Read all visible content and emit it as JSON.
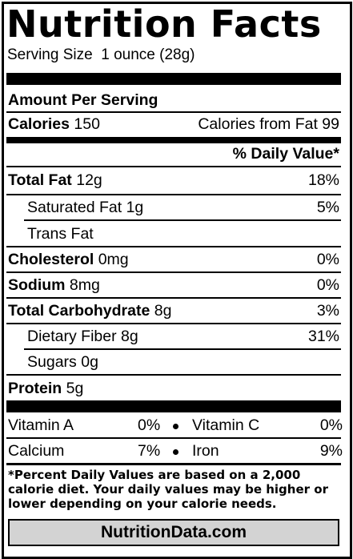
{
  "title": "Nutrition Facts",
  "serving_size": "Serving Size  1 ounce (28g)",
  "amount_per_serving": "Amount Per Serving",
  "calories": {
    "label": "Calories",
    "value": "150",
    "from_fat": "Calories from Fat 99"
  },
  "daily_value_header": "% Daily Value*",
  "nutrients": [
    {
      "name": "Total Fat",
      "amount": "12g",
      "dv": "18%"
    },
    {
      "name": "Saturated Fat",
      "amount": "1g",
      "dv": "5%"
    },
    {
      "name": "Trans Fat",
      "amount": "",
      "dv": ""
    },
    {
      "name": "Cholesterol",
      "amount": "0mg",
      "dv": "0%"
    },
    {
      "name": "Sodium",
      "amount": "8mg",
      "dv": "0%"
    },
    {
      "name": "Total Carbohydrate",
      "amount": "8g",
      "dv": "3%"
    },
    {
      "name": "Dietary Fiber",
      "amount": "8g",
      "dv": "31%"
    },
    {
      "name": "Sugars",
      "amount": "0g",
      "dv": ""
    },
    {
      "name": "Protein",
      "amount": "5g",
      "dv": ""
    }
  ],
  "vitamins": [
    {
      "name": "Vitamin A",
      "value": "0%"
    },
    {
      "name": "Vitamin C",
      "value": "0%"
    },
    {
      "name": "Calcium",
      "value": "7%"
    },
    {
      "name": "Iron",
      "value": "9%"
    }
  ],
  "footnote": "*Percent Daily Values are based on a 2,000 calorie diet. Your daily values may be higher or lower depending on your calorie needs.",
  "brand": "NutritionData.com"
}
